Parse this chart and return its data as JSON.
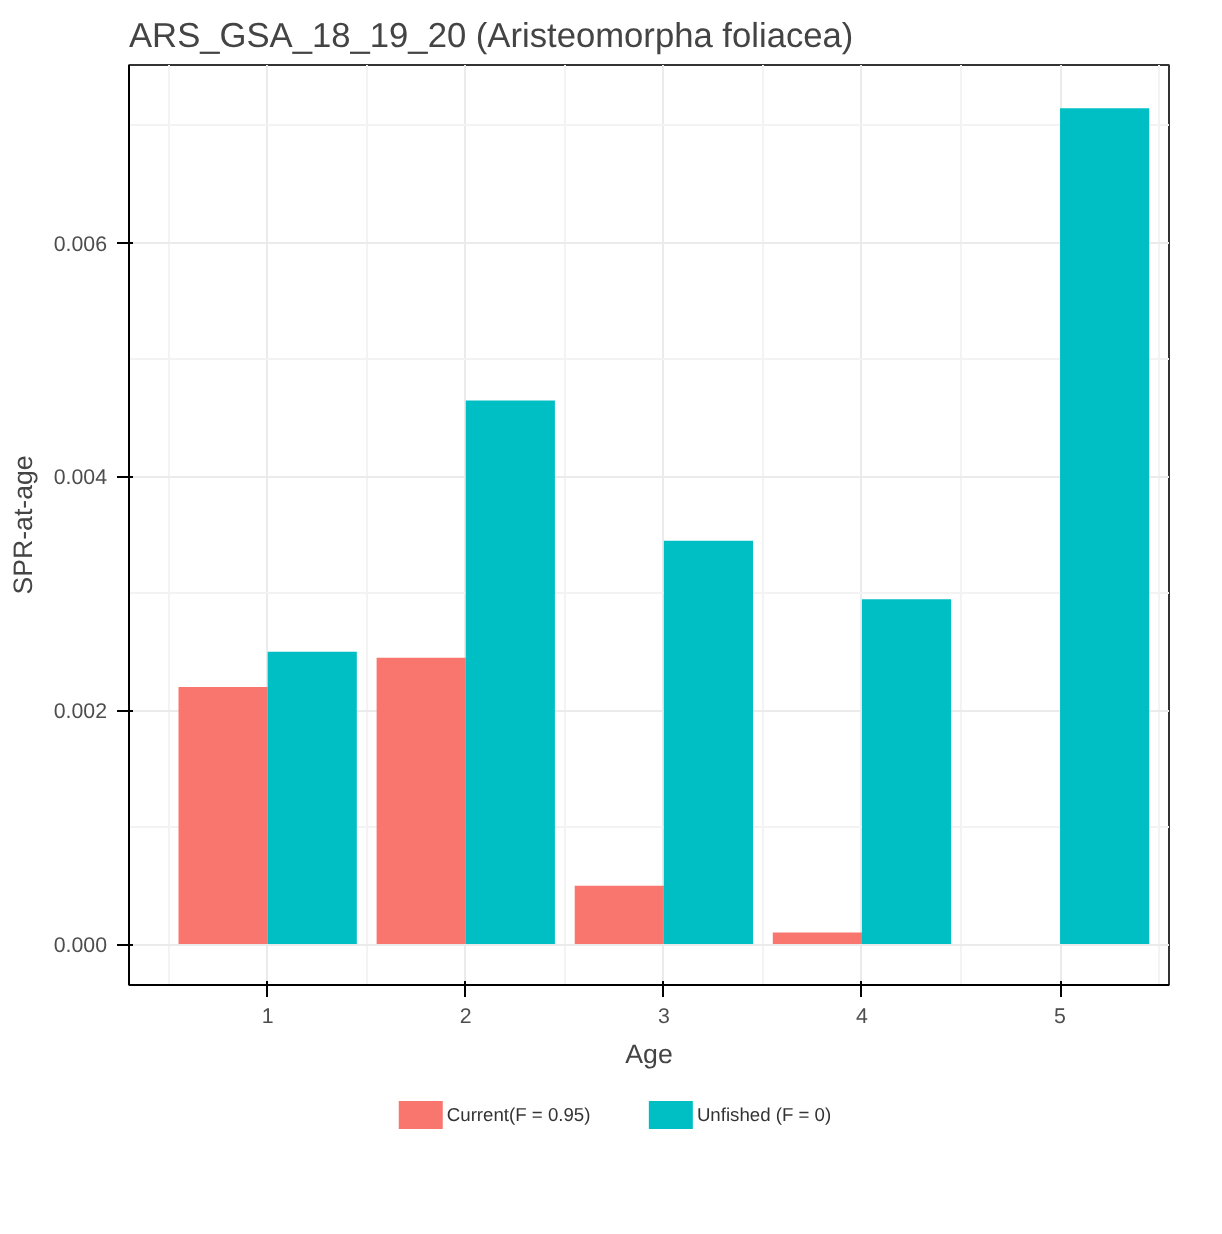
{
  "chart_data": {
    "type": "bar",
    "title": "ARS_GSA_18_19_20 (Aristeomorpha foliacea)",
    "xlabel": "Age",
    "ylabel": "SPR-at-age",
    "x": [
      1,
      2,
      3,
      4,
      5
    ],
    "series": [
      {
        "name": "Current(F = 0.95)",
        "color": "#f8766d",
        "values": [
          0.0022,
          0.00245,
          0.0005,
          0.0001,
          0.0
        ]
      },
      {
        "name": "Unfished (F = 0)",
        "color": "#00bfc4",
        "values": [
          0.0025,
          0.00465,
          0.00345,
          0.00295,
          0.00715
        ]
      }
    ],
    "xlim": [
      0.3,
      5.55
    ],
    "xticks": [
      1,
      2,
      3,
      4,
      5
    ],
    "ylim": [
      -0.00035,
      0.00752
    ],
    "yticks": [
      {
        "value": 0,
        "label": "0.000"
      },
      {
        "value": 0.002,
        "label": "0.002"
      },
      {
        "value": 0.004,
        "label": "0.004"
      },
      {
        "value": 0.006,
        "label": "0.006"
      }
    ],
    "grid": true,
    "legend": "bottom"
  }
}
